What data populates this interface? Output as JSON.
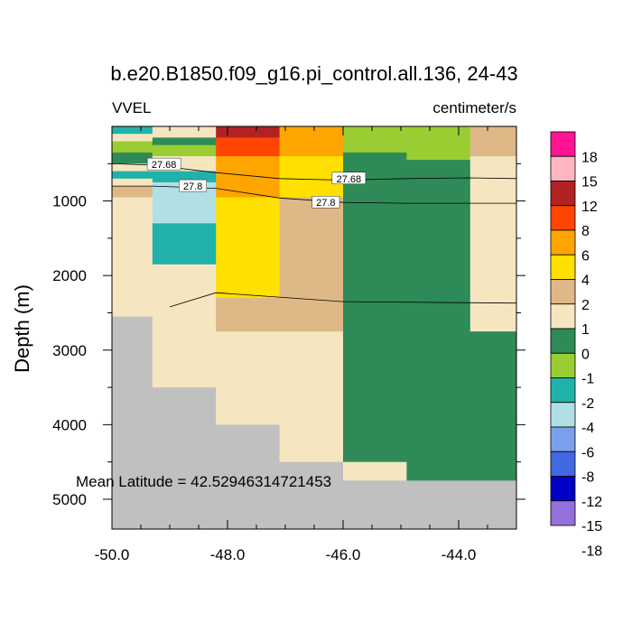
{
  "chart_data": {
    "type": "heatmap",
    "title": "b.e20.B1850.f09_g16.pi_control.all.136, 24-43",
    "left_label": "VVEL",
    "right_label": "centimeter/s",
    "ylabel": "Depth (m)",
    "xlabel": "",
    "xlim": [
      -50.0,
      -43.0
    ],
    "ylim": [
      5400,
      0
    ],
    "xticks": [
      -50.0,
      -48.0,
      -46.0,
      -44.0
    ],
    "xtick_labels": [
      "-50.0",
      "-48.0",
      "-46.0",
      "-44.0"
    ],
    "yticks": [
      1000,
      2000,
      3000,
      4000,
      5000
    ],
    "ytick_labels": [
      "1000",
      "2000",
      "3000",
      "4000",
      "5000"
    ],
    "annotation": "Mean Latitude = 42.52946314721453",
    "colorbar": {
      "levels": [
        "18",
        "15",
        "12",
        "8",
        "6",
        "4",
        "2",
        "1",
        "0",
        "-1",
        "-2",
        "-4",
        "-6",
        "-8",
        "-12",
        "-15",
        "-18"
      ],
      "colors": [
        "#FF1493",
        "#FFB6C1",
        "#B22222",
        "#FF4500",
        "#FFA500",
        "#FFE000",
        "#DEB887",
        "#F5E6C0",
        "#2E8B57",
        "#9ACD32",
        "#20B2AA",
        "#B0E0E6",
        "#7B9FEA",
        "#4169E1",
        "#0000C8",
        "#9370DB"
      ]
    },
    "columns": [
      {
        "x": [
          -50.0,
          -49.3
        ],
        "cells": [
          [
            0,
            100,
            "#20B2AA"
          ],
          [
            100,
            200,
            "#F5E6C0"
          ],
          [
            200,
            350,
            "#9ACD32"
          ],
          [
            350,
            500,
            "#2E8B57"
          ],
          [
            500,
            600,
            "#F5E6C0"
          ],
          [
            600,
            700,
            "#20B2AA"
          ],
          [
            700,
            800,
            "#F5E6C0"
          ],
          [
            800,
            950,
            "#DEB887"
          ],
          [
            950,
            2550,
            "#F5E6C0"
          ],
          [
            2550,
            5400,
            "#C0C0C0"
          ]
        ]
      },
      {
        "x": [
          -49.3,
          -48.2
        ],
        "cells": [
          [
            0,
            150,
            "#F5E6C0"
          ],
          [
            150,
            250,
            "#2E8B57"
          ],
          [
            250,
            400,
            "#9ACD32"
          ],
          [
            400,
            600,
            "#F5E6C0"
          ],
          [
            600,
            750,
            "#20B2AA"
          ],
          [
            750,
            1300,
            "#B0E0E6"
          ],
          [
            1300,
            1850,
            "#20B2AA"
          ],
          [
            1850,
            3500,
            "#F5E6C0"
          ],
          [
            3500,
            5400,
            "#C0C0C0"
          ]
        ]
      },
      {
        "x": [
          -48.2,
          -47.1
        ],
        "cells": [
          [
            0,
            150,
            "#B22222"
          ],
          [
            150,
            400,
            "#FF4500"
          ],
          [
            400,
            950,
            "#FFA500"
          ],
          [
            950,
            2300,
            "#FFE000"
          ],
          [
            2300,
            2750,
            "#DEB887"
          ],
          [
            2750,
            4000,
            "#F5E6C0"
          ],
          [
            4000,
            5400,
            "#C0C0C0"
          ]
        ]
      },
      {
        "x": [
          -47.1,
          -46.0
        ],
        "cells": [
          [
            0,
            400,
            "#FFA500"
          ],
          [
            400,
            950,
            "#FFE000"
          ],
          [
            950,
            2750,
            "#DEB887"
          ],
          [
            2750,
            4500,
            "#F5E6C0"
          ],
          [
            4500,
            5400,
            "#C0C0C0"
          ]
        ]
      },
      {
        "x": [
          -46.0,
          -44.9
        ],
        "cells": [
          [
            0,
            350,
            "#9ACD32"
          ],
          [
            350,
            4500,
            "#2E8B57"
          ],
          [
            4500,
            4750,
            "#F5E6C0"
          ],
          [
            4750,
            5400,
            "#C0C0C0"
          ]
        ]
      },
      {
        "x": [
          -44.9,
          -43.8
        ],
        "cells": [
          [
            0,
            450,
            "#9ACD32"
          ],
          [
            450,
            4750,
            "#2E8B57"
          ],
          [
            4750,
            5400,
            "#C0C0C0"
          ]
        ]
      },
      {
        "x": [
          -43.8,
          -43.0
        ],
        "cells": [
          [
            0,
            400,
            "#DEB887"
          ],
          [
            400,
            2750,
            "#F5E6C0"
          ],
          [
            2750,
            4750,
            "#2E8B57"
          ],
          [
            4750,
            5400,
            "#C0C0C0"
          ]
        ]
      }
    ],
    "contours": [
      {
        "label": "27.68",
        "points": [
          [
            -50.0,
            500
          ],
          [
            -49.3,
            520
          ],
          [
            -48.2,
            620
          ],
          [
            -47.1,
            700
          ],
          [
            -46.0,
            720
          ],
          [
            -44.9,
            700
          ],
          [
            -43.8,
            690
          ],
          [
            -43.0,
            700
          ]
        ]
      },
      {
        "label": "27.8",
        "points": [
          [
            -50.0,
            800
          ],
          [
            -49.3,
            800
          ],
          [
            -48.2,
            830
          ],
          [
            -47.1,
            960
          ],
          [
            -46.0,
            1020
          ],
          [
            -44.9,
            1030
          ],
          [
            -43.8,
            1030
          ],
          [
            -43.0,
            1030
          ]
        ]
      },
      {
        "label": "",
        "points": [
          [
            -49.0,
            2420
          ],
          [
            -48.2,
            2230
          ],
          [
            -46.0,
            2350
          ],
          [
            -43.0,
            2370
          ]
        ]
      }
    ],
    "contour_labels": [
      {
        "text": "27.68",
        "x": -49.1,
        "y": 510
      },
      {
        "text": "27.68",
        "x": -45.9,
        "y": 700
      },
      {
        "text": "27.8",
        "x": -48.6,
        "y": 800
      },
      {
        "text": "27.8",
        "x": -46.3,
        "y": 1020
      }
    ]
  }
}
